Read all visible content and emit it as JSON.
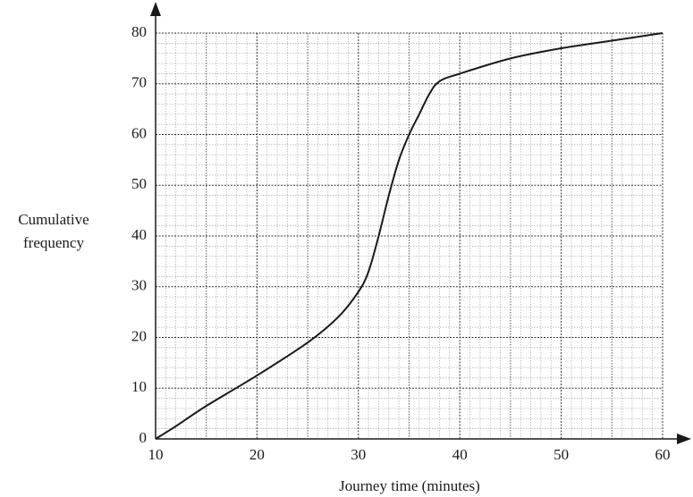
{
  "chart_data": {
    "type": "line",
    "x_label": "Journey time (minutes)",
    "y_label": "Cumulative frequency",
    "x": [
      10,
      12,
      15,
      20,
      25,
      28,
      30,
      31,
      32,
      33,
      34,
      35,
      36,
      37,
      38,
      40,
      45,
      50,
      55,
      60
    ],
    "series": [
      {
        "color": "#1a1a1a",
        "values": [
          0,
          2.5,
          6.5,
          12.5,
          19,
          24,
          29,
          33,
          40,
          48,
          55,
          60,
          64,
          68,
          70.5,
          72,
          75,
          77,
          78.5,
          80
        ]
      }
    ],
    "xlim": [
      10,
      60
    ],
    "xticks": [
      10,
      20,
      30,
      40,
      50,
      60
    ],
    "ylim": [
      0,
      80
    ],
    "yticks": [
      0,
      10,
      20,
      30,
      40,
      50,
      60,
      70,
      80
    ],
    "grid": true
  }
}
